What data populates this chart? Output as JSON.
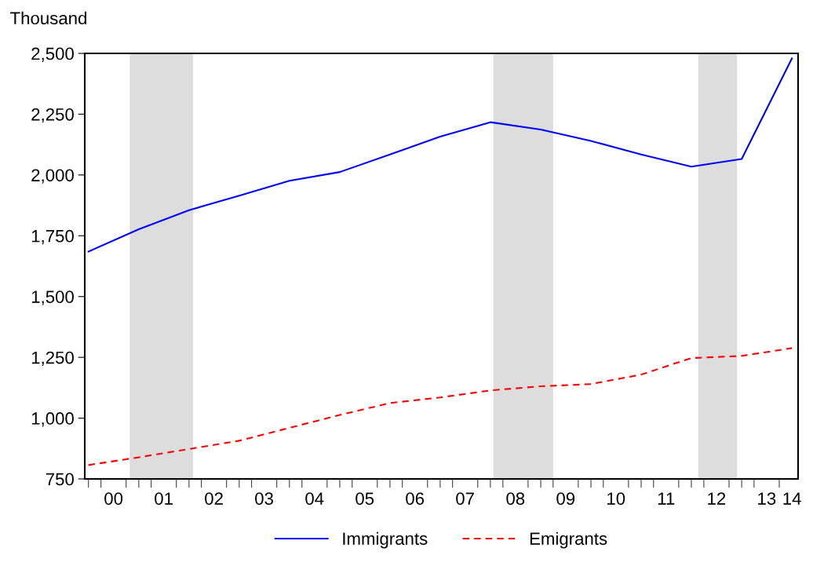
{
  "chart_data": {
    "type": "line",
    "ylabel": "Thousand",
    "x": [
      "2000-01",
      "2001-01",
      "2002-01",
      "2003-01",
      "2004-01",
      "2005-01",
      "2006-01",
      "2007-01",
      "2008-01",
      "2009-01",
      "2010-01",
      "2011-01",
      "2012-01",
      "2013-01",
      "2014-01"
    ],
    "series": [
      {
        "name": "Immigrants",
        "color": "#0000ff",
        "line_style": "solid",
        "values": [
          1685,
          1777,
          1855,
          1915,
          1976,
          2012,
          2084,
          2158,
          2217,
          2187,
          2140,
          2084,
          2034,
          2066,
          2479
        ]
      },
      {
        "name": "Emigrants",
        "color": "#ff0000",
        "line_style": "dashed",
        "values": [
          807,
          839,
          873,
          907,
          960,
          1013,
          1062,
          1085,
          1114,
          1131,
          1140,
          1179,
          1247,
          1256,
          1288
        ]
      }
    ],
    "bands": [
      {
        "axis": "x",
        "from": "2000-10-27",
        "to": "2002-01-30",
        "color": "#dddddd"
      },
      {
        "axis": "x",
        "from": "2008-01-23",
        "to": "2009-04-01",
        "color": "#dddddd"
      },
      {
        "axis": "x",
        "from": "2012-02-21",
        "to": "2012-11-28",
        "color": "#dddddd"
      }
    ],
    "xlim": [
      "1999-12-05",
      "2014-02-15"
    ],
    "xticks": [
      {
        "value": "2000-07",
        "label": "00"
      },
      {
        "value": "2001-07",
        "label": "01"
      },
      {
        "value": "2002-07",
        "label": "02"
      },
      {
        "value": "2003-07",
        "label": "03"
      },
      {
        "value": "2004-07",
        "label": "04"
      },
      {
        "value": "2005-07",
        "label": "05"
      },
      {
        "value": "2006-07",
        "label": "06"
      },
      {
        "value": "2007-07",
        "label": "07"
      },
      {
        "value": "2008-07",
        "label": "08"
      },
      {
        "value": "2009-07",
        "label": "09"
      },
      {
        "value": "2010-07",
        "label": "10"
      },
      {
        "value": "2011-07",
        "label": "11"
      },
      {
        "value": "2012-07",
        "label": "12"
      },
      {
        "value": "2013-07",
        "label": "13"
      },
      {
        "value": "2014-01",
        "label": "14"
      },
      {
        "value": "2000-01",
        "label": null
      },
      {
        "value": "2000-04",
        "label": null
      },
      {
        "value": "2000-10",
        "label": null
      },
      {
        "value": "2001-01",
        "label": null
      },
      {
        "value": "2001-04",
        "label": null
      },
      {
        "value": "2001-10",
        "label": null
      },
      {
        "value": "2002-01",
        "label": null
      },
      {
        "value": "2002-04",
        "label": null
      },
      {
        "value": "2002-10",
        "label": null
      },
      {
        "value": "2003-01",
        "label": null
      },
      {
        "value": "2003-04",
        "label": null
      },
      {
        "value": "2003-10",
        "label": null
      },
      {
        "value": "2004-01",
        "label": null
      },
      {
        "value": "2004-04",
        "label": null
      },
      {
        "value": "2004-10",
        "label": null
      },
      {
        "value": "2005-01",
        "label": null
      },
      {
        "value": "2005-04",
        "label": null
      },
      {
        "value": "2005-10",
        "label": null
      },
      {
        "value": "2006-01",
        "label": null
      },
      {
        "value": "2006-04",
        "label": null
      },
      {
        "value": "2006-10",
        "label": null
      },
      {
        "value": "2007-01",
        "label": null
      },
      {
        "value": "2007-04",
        "label": null
      },
      {
        "value": "2007-10",
        "label": null
      },
      {
        "value": "2008-01",
        "label": null
      },
      {
        "value": "2008-04",
        "label": null
      },
      {
        "value": "2008-10",
        "label": null
      },
      {
        "value": "2009-01",
        "label": null
      },
      {
        "value": "2009-04",
        "label": null
      },
      {
        "value": "2009-10",
        "label": null
      },
      {
        "value": "2010-01",
        "label": null
      },
      {
        "value": "2010-04",
        "label": null
      },
      {
        "value": "2010-10",
        "label": null
      },
      {
        "value": "2011-01",
        "label": null
      },
      {
        "value": "2011-04",
        "label": null
      },
      {
        "value": "2011-10",
        "label": null
      },
      {
        "value": "2012-01",
        "label": null
      },
      {
        "value": "2012-04",
        "label": null
      },
      {
        "value": "2012-10",
        "label": null
      },
      {
        "value": "2013-01",
        "label": null
      },
      {
        "value": "2013-04",
        "label": null
      },
      {
        "value": "2013-10",
        "label": null
      }
    ],
    "ylim": [
      750,
      2500
    ],
    "yticks": [
      {
        "value": 750,
        "label": "750"
      },
      {
        "value": 1000,
        "label": "1,000"
      },
      {
        "value": 1250,
        "label": "1,250"
      },
      {
        "value": 1500,
        "label": "1,500"
      },
      {
        "value": 1750,
        "label": "1,750"
      },
      {
        "value": 2000,
        "label": "2,000"
      },
      {
        "value": 2250,
        "label": "2,250"
      },
      {
        "value": 2500,
        "label": "2,500"
      }
    ],
    "legend": "bottom",
    "grid": false,
    "marker": "none"
  }
}
